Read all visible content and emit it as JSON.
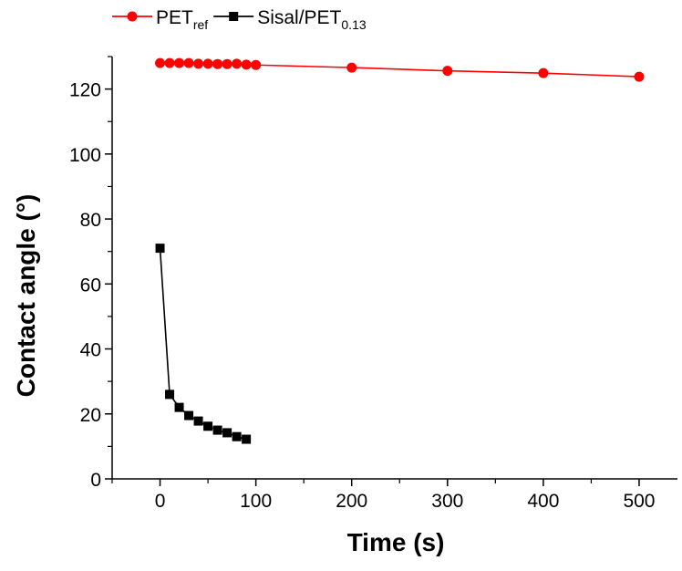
{
  "chart_data": {
    "type": "line",
    "xlabel": "Time (s)",
    "ylabel": "Contact angle (°)",
    "xlim": [
      -50,
      540
    ],
    "ylim": [
      0,
      130
    ],
    "xticks": [
      0,
      100,
      200,
      300,
      400,
      500
    ],
    "yticks": [
      0,
      20,
      40,
      60,
      80,
      100,
      120
    ],
    "x_tick_labels": [
      "0",
      "100",
      "200",
      "300",
      "400",
      "500"
    ],
    "y_tick_labels": [
      "0",
      "20",
      "40",
      "60",
      "80",
      "100",
      "120"
    ],
    "legend_position": "top-left",
    "grid": false,
    "series": [
      {
        "name": "PET",
        "name_sub": "ref",
        "color": "#ff0000",
        "marker": "circle",
        "x": [
          0,
          10,
          20,
          30,
          40,
          50,
          60,
          70,
          80,
          90,
          100,
          200,
          300,
          400,
          500
        ],
        "y": [
          128,
          128,
          128,
          128,
          127.8,
          127.8,
          127.7,
          127.7,
          127.8,
          127.5,
          127.4,
          126.6,
          125.6,
          124.9,
          123.8
        ]
      },
      {
        "name": "Sisal/PET",
        "name_sub": "0.13",
        "color": "#000000",
        "marker": "square",
        "x": [
          0,
          10,
          20,
          30,
          40,
          50,
          60,
          70,
          80,
          90
        ],
        "y": [
          71,
          26,
          22,
          19.5,
          17.8,
          16.2,
          15,
          14.2,
          13,
          12.2
        ]
      }
    ]
  }
}
